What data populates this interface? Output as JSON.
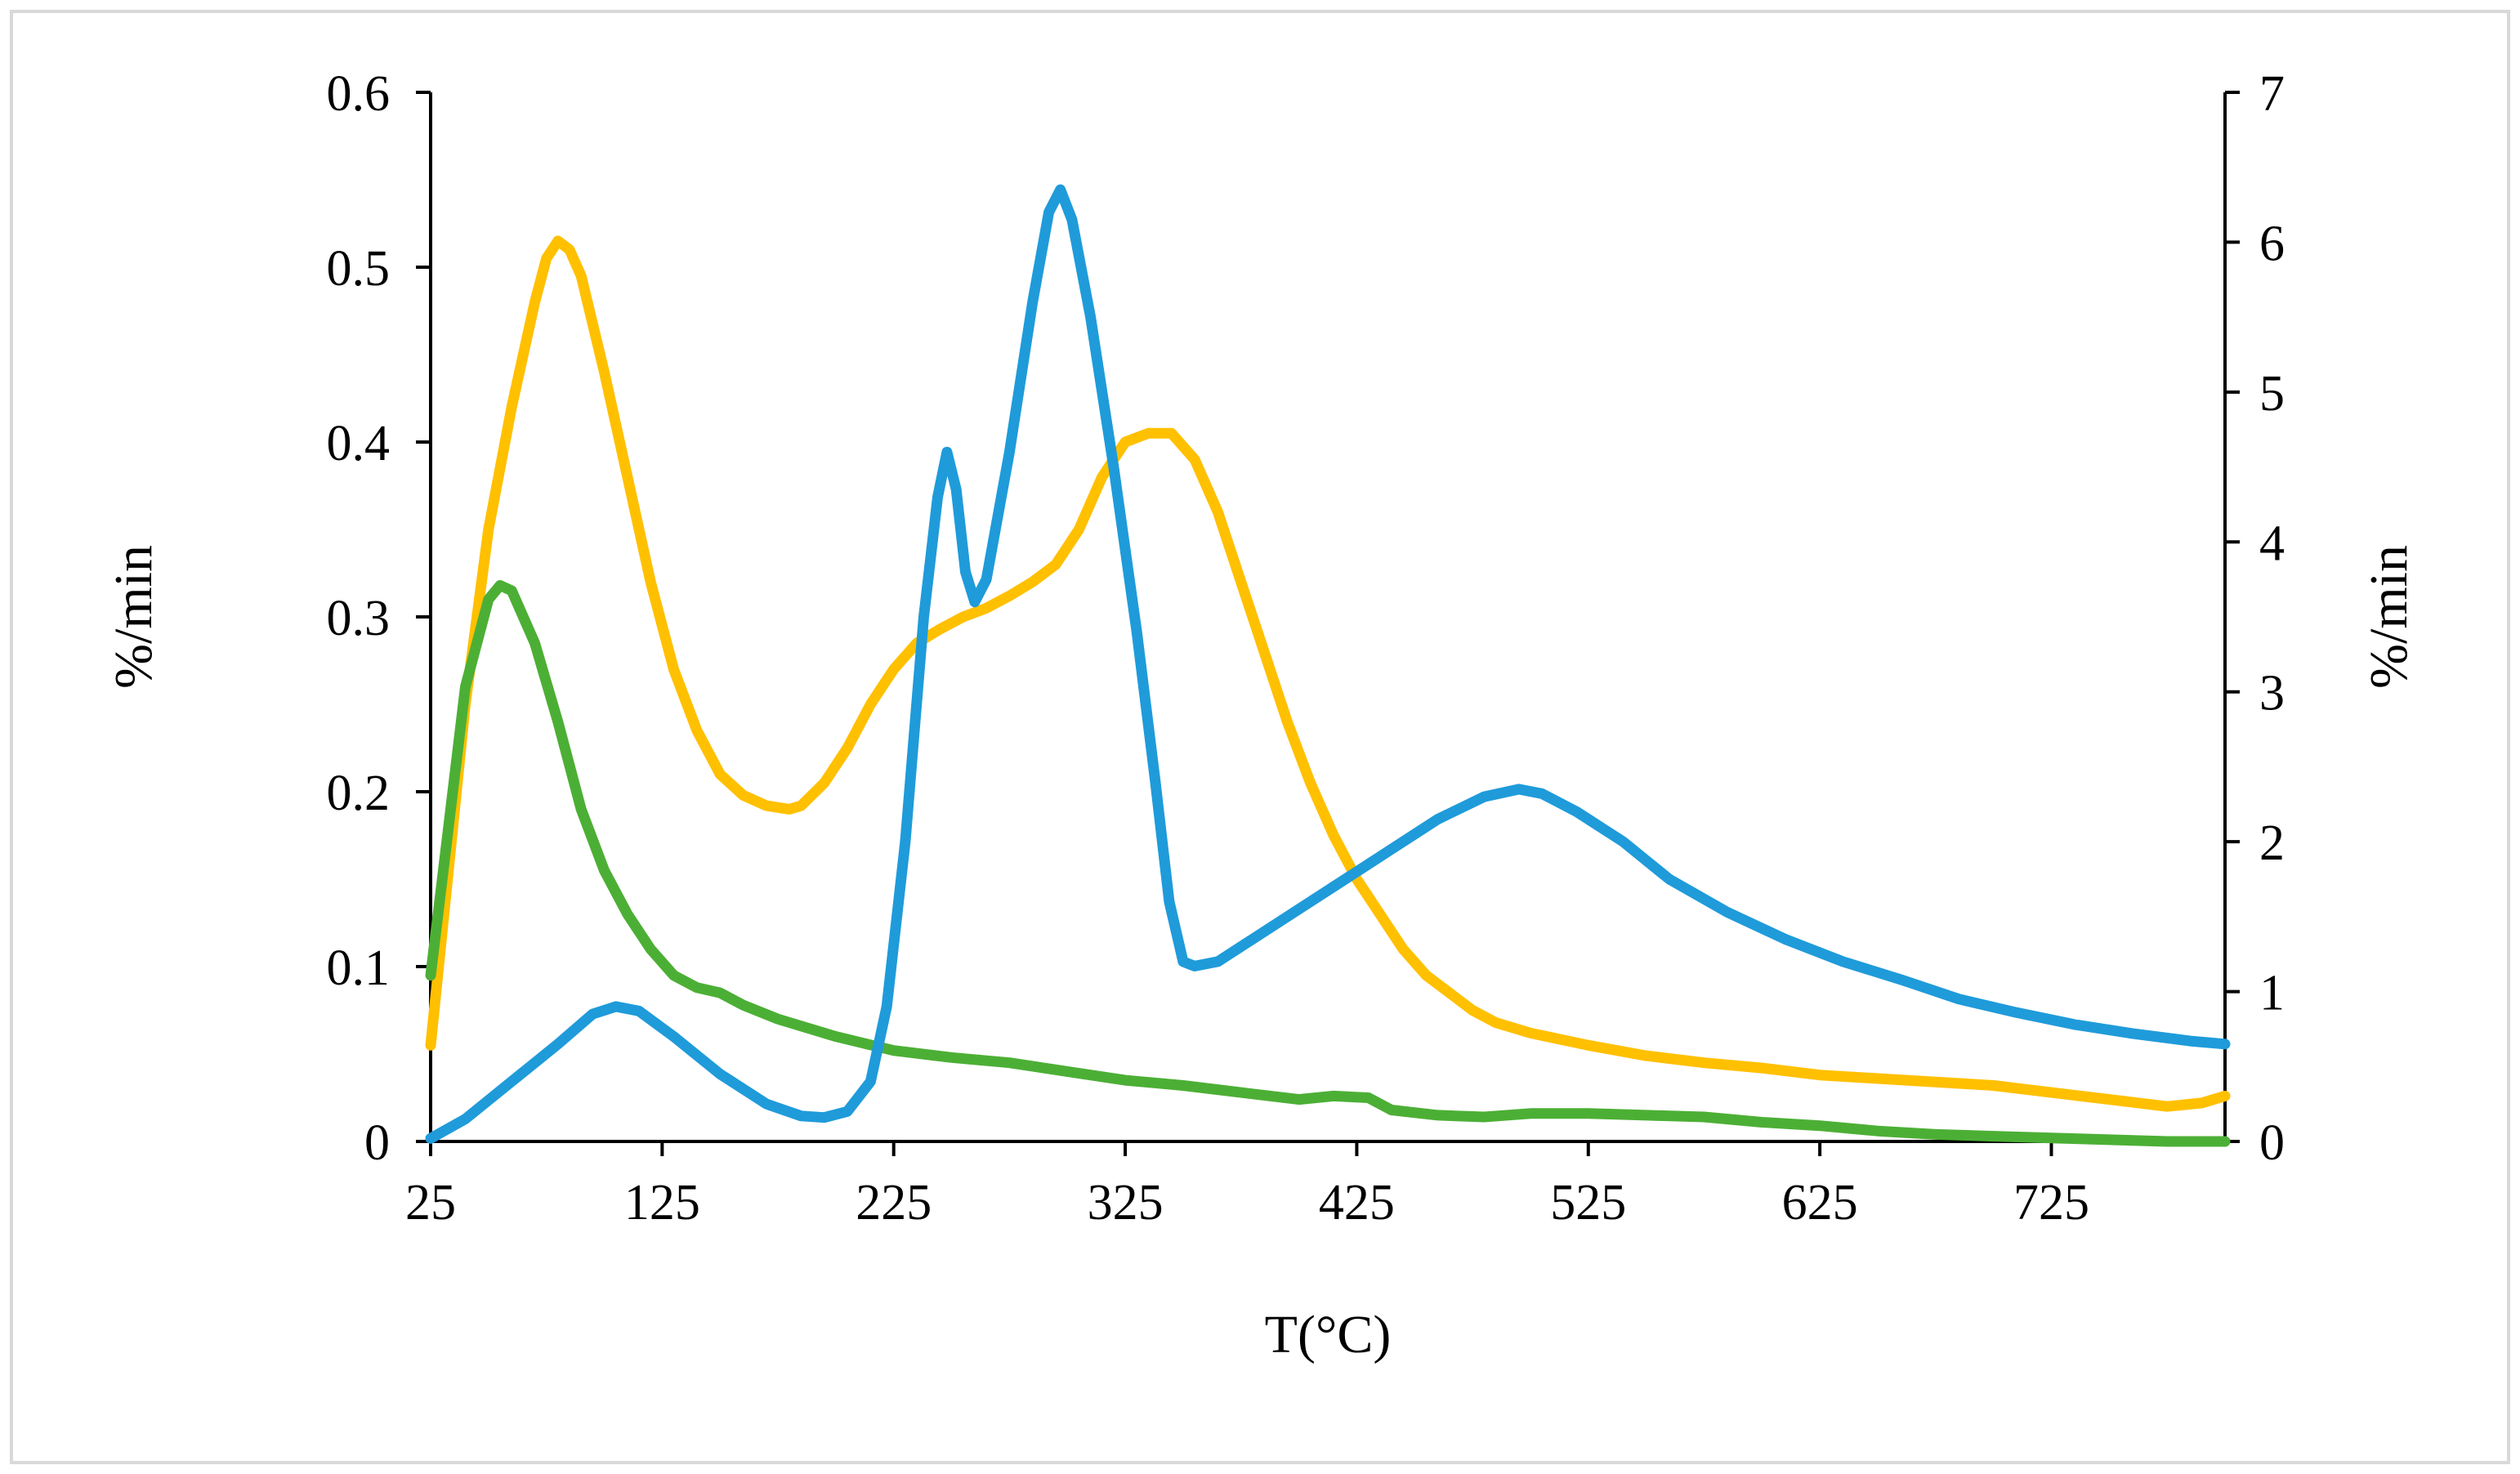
{
  "chart_data": {
    "type": "line",
    "title": "",
    "xlabel": "T(°C)",
    "ylabel": "%/min",
    "y2label": "%/min",
    "xlim": [
      25,
      800
    ],
    "ylim": [
      0,
      0.6
    ],
    "y2lim": [
      0,
      7
    ],
    "xticks": [
      25,
      125,
      225,
      325,
      425,
      525,
      625,
      725
    ],
    "yticks": [
      0,
      0.1,
      0.2,
      0.3,
      0.4,
      0.5,
      0.6
    ],
    "y2ticks": [
      0,
      1,
      2,
      3,
      4,
      5,
      6,
      7
    ],
    "grid": false,
    "legend": "none",
    "series": [
      {
        "axis": "left",
        "color": "#FFC000",
        "points": [
          [
            25,
            0.055
          ],
          [
            30,
            0.12
          ],
          [
            40,
            0.25
          ],
          [
            50,
            0.35
          ],
          [
            60,
            0.42
          ],
          [
            70,
            0.48
          ],
          [
            75,
            0.505
          ],
          [
            80,
            0.515
          ],
          [
            85,
            0.51
          ],
          [
            90,
            0.495
          ],
          [
            100,
            0.44
          ],
          [
            110,
            0.38
          ],
          [
            120,
            0.32
          ],
          [
            130,
            0.27
          ],
          [
            140,
            0.235
          ],
          [
            150,
            0.21
          ],
          [
            160,
            0.198
          ],
          [
            170,
            0.192
          ],
          [
            180,
            0.19
          ],
          [
            185,
            0.192
          ],
          [
            195,
            0.205
          ],
          [
            205,
            0.225
          ],
          [
            215,
            0.25
          ],
          [
            225,
            0.27
          ],
          [
            235,
            0.285
          ],
          [
            245,
            0.293
          ],
          [
            255,
            0.3
          ],
          [
            265,
            0.305
          ],
          [
            275,
            0.312
          ],
          [
            285,
            0.32
          ],
          [
            295,
            0.33
          ],
          [
            305,
            0.35
          ],
          [
            315,
            0.38
          ],
          [
            325,
            0.4
          ],
          [
            335,
            0.405
          ],
          [
            345,
            0.405
          ],
          [
            355,
            0.39
          ],
          [
            365,
            0.36
          ],
          [
            375,
            0.32
          ],
          [
            385,
            0.28
          ],
          [
            395,
            0.24
          ],
          [
            405,
            0.205
          ],
          [
            415,
            0.175
          ],
          [
            425,
            0.15
          ],
          [
            435,
            0.13
          ],
          [
            445,
            0.11
          ],
          [
            455,
            0.095
          ],
          [
            465,
            0.085
          ],
          [
            475,
            0.075
          ],
          [
            485,
            0.068
          ],
          [
            500,
            0.062
          ],
          [
            525,
            0.055
          ],
          [
            550,
            0.049
          ],
          [
            575,
            0.045
          ],
          [
            600,
            0.042
          ],
          [
            625,
            0.038
          ],
          [
            650,
            0.036
          ],
          [
            675,
            0.034
          ],
          [
            700,
            0.032
          ],
          [
            725,
            0.028
          ],
          [
            750,
            0.024
          ],
          [
            775,
            0.02
          ],
          [
            790,
            0.022
          ],
          [
            800,
            0.026
          ]
        ]
      },
      {
        "axis": "left",
        "color": "#4CAF35",
        "points": [
          [
            25,
            0.095
          ],
          [
            30,
            0.15
          ],
          [
            40,
            0.26
          ],
          [
            50,
            0.31
          ],
          [
            55,
            0.318
          ],
          [
            60,
            0.315
          ],
          [
            70,
            0.285
          ],
          [
            80,
            0.24
          ],
          [
            90,
            0.19
          ],
          [
            100,
            0.155
          ],
          [
            110,
            0.13
          ],
          [
            120,
            0.11
          ],
          [
            130,
            0.095
          ],
          [
            140,
            0.088
          ],
          [
            150,
            0.085
          ],
          [
            160,
            0.078
          ],
          [
            175,
            0.07
          ],
          [
            200,
            0.06
          ],
          [
            225,
            0.052
          ],
          [
            250,
            0.048
          ],
          [
            275,
            0.045
          ],
          [
            300,
            0.04
          ],
          [
            325,
            0.035
          ],
          [
            350,
            0.032
          ],
          [
            375,
            0.028
          ],
          [
            400,
            0.024
          ],
          [
            415,
            0.026
          ],
          [
            430,
            0.025
          ],
          [
            440,
            0.018
          ],
          [
            460,
            0.015
          ],
          [
            480,
            0.014
          ],
          [
            500,
            0.016
          ],
          [
            525,
            0.016
          ],
          [
            550,
            0.015
          ],
          [
            575,
            0.014
          ],
          [
            600,
            0.011
          ],
          [
            625,
            0.009
          ],
          [
            650,
            0.006
          ],
          [
            675,
            0.004
          ],
          [
            700,
            0.003
          ],
          [
            725,
            0.002
          ],
          [
            750,
            0.001
          ],
          [
            775,
            0.0
          ],
          [
            800,
            0.0
          ]
        ]
      },
      {
        "axis": "right",
        "color": "#1F9BDA",
        "points": [
          [
            25,
            0.02
          ],
          [
            40,
            0.15
          ],
          [
            60,
            0.4
          ],
          [
            80,
            0.65
          ],
          [
            95,
            0.85
          ],
          [
            105,
            0.9
          ],
          [
            115,
            0.87
          ],
          [
            130,
            0.7
          ],
          [
            150,
            0.45
          ],
          [
            170,
            0.25
          ],
          [
            185,
            0.17
          ],
          [
            195,
            0.16
          ],
          [
            205,
            0.2
          ],
          [
            215,
            0.4
          ],
          [
            222,
            0.9
          ],
          [
            230,
            2.0
          ],
          [
            238,
            3.5
          ],
          [
            244,
            4.3
          ],
          [
            248,
            4.6
          ],
          [
            252,
            4.35
          ],
          [
            256,
            3.8
          ],
          [
            260,
            3.6
          ],
          [
            265,
            3.75
          ],
          [
            275,
            4.6
          ],
          [
            285,
            5.6
          ],
          [
            292,
            6.2
          ],
          [
            297,
            6.35
          ],
          [
            302,
            6.15
          ],
          [
            310,
            5.5
          ],
          [
            320,
            4.5
          ],
          [
            330,
            3.4
          ],
          [
            338,
            2.4
          ],
          [
            344,
            1.6
          ],
          [
            350,
            1.2
          ],
          [
            355,
            1.17
          ],
          [
            365,
            1.2
          ],
          [
            380,
            1.35
          ],
          [
            400,
            1.55
          ],
          [
            420,
            1.75
          ],
          [
            440,
            1.95
          ],
          [
            460,
            2.15
          ],
          [
            480,
            2.3
          ],
          [
            495,
            2.35
          ],
          [
            505,
            2.32
          ],
          [
            520,
            2.2
          ],
          [
            540,
            2.0
          ],
          [
            560,
            1.75
          ],
          [
            585,
            1.53
          ],
          [
            610,
            1.35
          ],
          [
            635,
            1.2
          ],
          [
            660,
            1.08
          ],
          [
            685,
            0.95
          ],
          [
            710,
            0.86
          ],
          [
            735,
            0.78
          ],
          [
            760,
            0.72
          ],
          [
            785,
            0.67
          ],
          [
            800,
            0.65
          ]
        ]
      }
    ]
  }
}
